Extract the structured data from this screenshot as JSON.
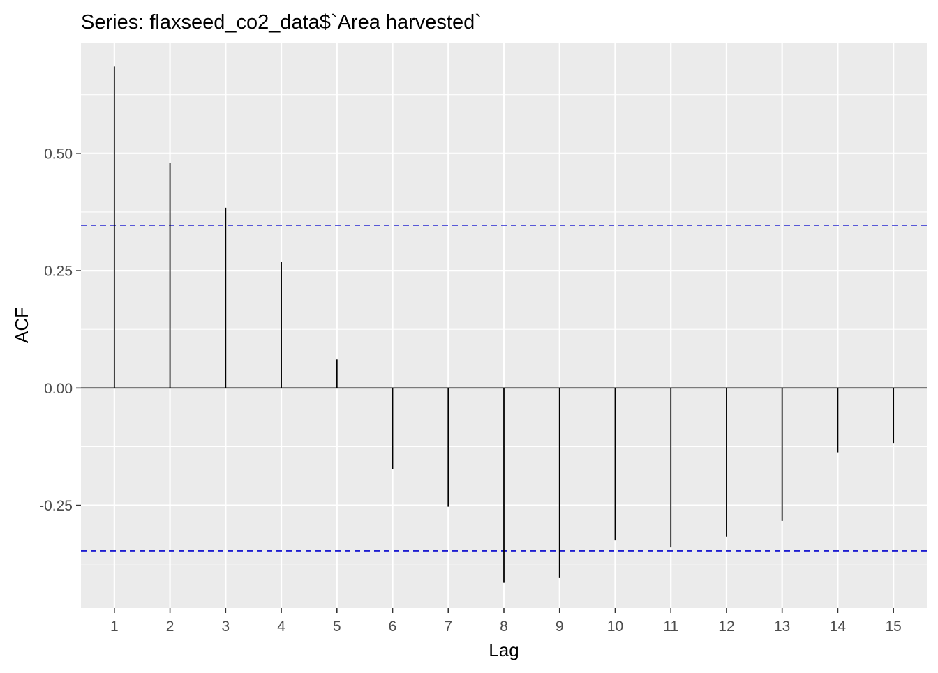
{
  "chart_data": {
    "type": "bar",
    "title": "Series: flaxseed_co2_data$`Area harvested`",
    "xlabel": "Lag",
    "ylabel": "ACF",
    "lags": [
      1,
      2,
      3,
      4,
      5,
      6,
      7,
      8,
      9,
      10,
      11,
      12,
      13,
      14,
      15
    ],
    "values": [
      0.685,
      0.479,
      0.384,
      0.268,
      0.061,
      -0.173,
      -0.253,
      -0.415,
      -0.405,
      -0.325,
      -0.34,
      -0.317,
      -0.283,
      -0.137,
      -0.117
    ],
    "yticks": [
      -0.25,
      0.0,
      0.25,
      0.5
    ],
    "ytick_labels": [
      "-0.25",
      "0.00",
      "0.25",
      "0.50"
    ],
    "xticks": [
      1,
      2,
      3,
      4,
      5,
      6,
      7,
      8,
      9,
      10,
      11,
      12,
      13,
      14,
      15
    ],
    "xtick_labels": [
      "1",
      "2",
      "3",
      "4",
      "5",
      "6",
      "7",
      "8",
      "9",
      "10",
      "11",
      "12",
      "13",
      "14",
      "15"
    ],
    "xlim": [
      0.4,
      15.6
    ],
    "ylim": [
      -0.469,
      0.736
    ],
    "confidence_bound": 0.347,
    "grid": true,
    "colors": {
      "panel": "#EBEBEB",
      "gridline": "#FFFFFF",
      "spike": "#000000",
      "zero_line": "#000000",
      "confidence_line": "#0000CC",
      "tick_label": "#4D4D4D",
      "axis_title": "#000000"
    }
  }
}
